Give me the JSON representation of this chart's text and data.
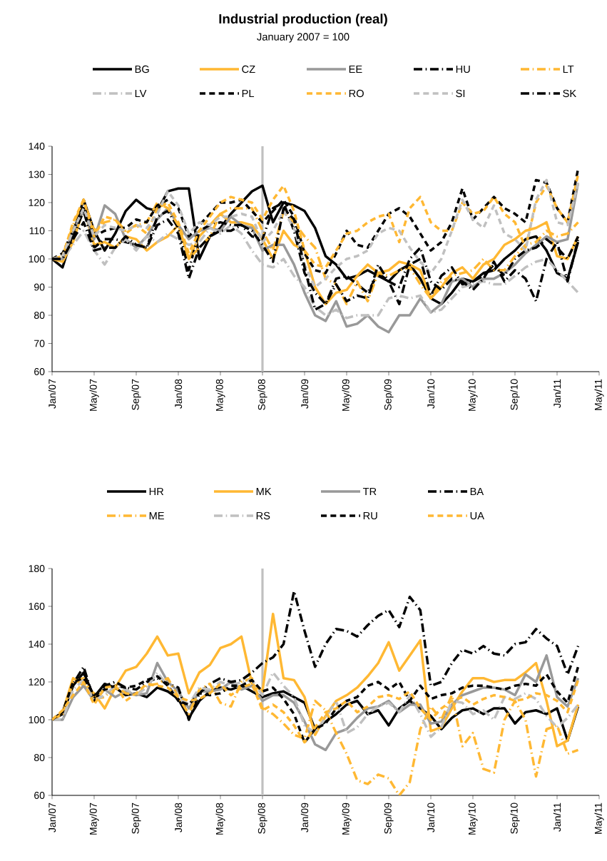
{
  "chart_data": [
    {
      "type": "line",
      "title": "Industrial production (real)",
      "subtitle": "January 2007 = 100",
      "x": [
        "2007-01",
        "2007-02",
        "2007-03",
        "2007-04",
        "2007-05",
        "2007-06",
        "2007-07",
        "2007-08",
        "2007-09",
        "2007-10",
        "2007-11",
        "2007-12",
        "2008-01",
        "2008-02",
        "2008-03",
        "2008-04",
        "2008-05",
        "2008-06",
        "2008-07",
        "2008-08",
        "2008-09",
        "2008-10",
        "2008-11",
        "2008-12",
        "2009-01",
        "2009-02",
        "2009-03",
        "2009-04",
        "2009-05",
        "2009-06",
        "2009-07",
        "2009-08",
        "2009-09",
        "2009-10",
        "2009-11",
        "2009-12",
        "2010-01",
        "2010-02",
        "2010-03",
        "2010-04",
        "2010-05",
        "2010-06",
        "2010-07",
        "2010-08",
        "2010-09",
        "2010-10",
        "2010-11",
        "2010-12",
        "2011-01",
        "2011-02",
        "2011-03"
      ],
      "xlim": [
        "2007-01",
        "2011-05"
      ],
      "xticks": [
        {
          "value": "2007-01",
          "label": "Jan/07"
        },
        {
          "value": "2007-05",
          "label": "May/07"
        },
        {
          "value": "2007-09",
          "label": "Sep/07"
        },
        {
          "value": "2008-01",
          "label": "Jan/08"
        },
        {
          "value": "2008-05",
          "label": "May/08"
        },
        {
          "value": "2008-09",
          "label": "Sep/08"
        },
        {
          "value": "2009-01",
          "label": "Jan/09"
        },
        {
          "value": "2009-05",
          "label": "May/09"
        },
        {
          "value": "2009-09",
          "label": "Sep/09"
        },
        {
          "value": "2010-01",
          "label": "Jan/10"
        },
        {
          "value": "2010-05",
          "label": "May/10"
        },
        {
          "value": "2010-09",
          "label": "Sep/10"
        },
        {
          "value": "2011-01",
          "label": "Jan/11"
        },
        {
          "value": "2011-05",
          "label": "May/11"
        }
      ],
      "ylim": [
        60,
        140
      ],
      "yticks": [
        60,
        70,
        80,
        90,
        100,
        110,
        120,
        130,
        140
      ],
      "legend": "top",
      "ref_lines": [
        {
          "axis": "x",
          "value": "2008-09",
          "color": "#c0c0c0"
        }
      ],
      "series": [
        {
          "name": "BG",
          "color": "#000000",
          "line_style": "solid",
          "values": [
            100,
            97,
            109,
            121,
            110,
            103,
            109,
            117,
            121,
            118,
            117,
            124,
            125,
            125,
            100,
            108,
            111,
            116,
            120,
            124,
            126,
            113,
            120,
            119,
            117,
            111,
            101,
            98,
            93,
            94,
            96,
            94,
            92,
            96,
            98,
            93,
            86,
            84,
            88,
            93,
            92,
            95,
            96,
            100,
            103,
            107,
            108,
            103,
            95,
            93,
            106
          ]
        },
        {
          "name": "CZ",
          "color": "#ffb833",
          "line_style": "solid",
          "values": [
            100,
            99,
            106,
            118,
            105,
            106,
            104,
            108,
            107,
            103,
            106,
            108,
            112,
            100,
            108,
            112,
            116,
            113,
            113,
            112,
            107,
            100,
            110,
            105,
            103,
            90,
            84,
            88,
            89,
            94,
            98,
            95,
            96,
            99,
            98,
            96,
            86,
            90,
            95,
            97,
            93,
            98,
            100,
            105,
            107,
            110,
            111,
            113,
            101,
            100,
            108
          ]
        },
        {
          "name": "EE",
          "color": "#999999",
          "line_style": "solid",
          "values": [
            100,
            100,
            110,
            117,
            107,
            119,
            116,
            107,
            104,
            108,
            114,
            118,
            112,
            107,
            110,
            111,
            110,
            115,
            112,
            111,
            103,
            105,
            105,
            98,
            88,
            80,
            78,
            85,
            76,
            77,
            80,
            76,
            74,
            80,
            80,
            86,
            81,
            84,
            92,
            93,
            90,
            93,
            93,
            95,
            98,
            102,
            105,
            108,
            106,
            107,
            127
          ]
        },
        {
          "name": "HU",
          "color": "#000000",
          "line_style": "dashdot",
          "values": [
            100,
            100,
            108,
            117,
            104,
            107,
            107,
            106,
            105,
            104,
            115,
            117,
            111,
            96,
            110,
            112,
            113,
            112,
            112,
            108,
            107,
            118,
            120,
            110,
            95,
            88,
            84,
            93,
            94,
            91,
            88,
            95,
            92,
            84,
            98,
            100,
            87,
            94,
            97,
            91,
            92,
            94,
            98,
            94,
            100,
            103,
            104,
            107,
            104,
            100,
            108
          ]
        },
        {
          "name": "LT",
          "color": "#ffb833",
          "line_style": "dashdot",
          "values": [
            100,
            101,
            112,
            121,
            110,
            113,
            114,
            110,
            112,
            113,
            120,
            118,
            112,
            100,
            104,
            108,
            116,
            118,
            118,
            118,
            110,
            103,
            117,
            113,
            108,
            104,
            93,
            91,
            84,
            92,
            85,
            95,
            94,
            96,
            97,
            91,
            86,
            92,
            94,
            95,
            96,
            100,
            96,
            96,
            101,
            105,
            106,
            110,
            108,
            109,
            113
          ]
        },
        {
          "name": "LV",
          "color": "#c0c0c0",
          "line_style": "dashdot",
          "values": [
            100,
            100,
            105,
            110,
            103,
            98,
            104,
            107,
            103,
            108,
            106,
            109,
            107,
            105,
            106,
            111,
            109,
            112,
            109,
            103,
            98,
            97,
            100,
            94,
            90,
            83,
            80,
            82,
            79,
            80,
            80,
            80,
            86,
            87,
            86,
            87,
            81,
            82,
            86,
            90,
            91,
            92,
            91,
            91,
            94,
            97,
            99,
            100,
            96,
            92,
            88
          ]
        },
        {
          "name": "PL",
          "color": "#000000",
          "line_style": "dashed",
          "values": [
            100,
            102,
            110,
            119,
            108,
            110,
            111,
            111,
            114,
            113,
            119,
            121,
            118,
            108,
            112,
            116,
            120,
            120,
            121,
            117,
            113,
            117,
            121,
            115,
            102,
            96,
            95,
            102,
            110,
            105,
            104,
            110,
            116,
            118,
            115,
            109,
            103,
            106,
            113,
            125,
            114,
            118,
            122,
            118,
            116,
            113,
            128,
            127,
            118,
            113,
            132
          ]
        },
        {
          "name": "RO",
          "color": "#ffb833",
          "line_style": "dashed",
          "values": [
            100,
            101,
            113,
            121,
            108,
            115,
            114,
            109,
            112,
            109,
            118,
            120,
            113,
            102,
            110,
            115,
            120,
            122,
            121,
            120,
            114,
            121,
            126,
            117,
            103,
            98,
            97,
            103,
            109,
            110,
            113,
            115,
            116,
            106,
            118,
            122,
            113,
            110,
            110,
            120,
            116,
            117,
            122,
            116,
            113,
            104,
            120,
            126,
            118,
            113,
            130
          ]
        },
        {
          "name": "SI",
          "color": "#c0c0c0",
          "line_style": "dashed",
          "values": [
            100,
            101,
            110,
            118,
            108,
            112,
            111,
            110,
            112,
            111,
            116,
            124,
            119,
            109,
            113,
            112,
            115,
            115,
            116,
            115,
            106,
            110,
            117,
            111,
            98,
            90,
            93,
            97,
            100,
            101,
            103,
            109,
            111,
            110,
            104,
            99,
            95,
            100,
            110,
            121,
            114,
            111,
            119,
            109,
            107,
            103,
            121,
            128,
            113,
            112,
            127
          ]
        },
        {
          "name": "SK",
          "color": "#000000",
          "line_style": "dashdot",
          "values": [
            100,
            100,
            107,
            113,
            103,
            104,
            104,
            108,
            105,
            104,
            112,
            114,
            109,
            93,
            104,
            108,
            110,
            110,
            112,
            110,
            105,
            99,
            118,
            114,
            97,
            82,
            84,
            91,
            85,
            87,
            86,
            98,
            92,
            90,
            100,
            104,
            92,
            89,
            93,
            92,
            89,
            93,
            99,
            92,
            96,
            93,
            85,
            100,
            106,
            92,
            107
          ]
        }
      ]
    },
    {
      "type": "line",
      "x": [
        "2007-01",
        "2007-02",
        "2007-03",
        "2007-04",
        "2007-05",
        "2007-06",
        "2007-07",
        "2007-08",
        "2007-09",
        "2007-10",
        "2007-11",
        "2007-12",
        "2008-01",
        "2008-02",
        "2008-03",
        "2008-04",
        "2008-05",
        "2008-06",
        "2008-07",
        "2008-08",
        "2008-09",
        "2008-10",
        "2008-11",
        "2008-12",
        "2009-01",
        "2009-02",
        "2009-03",
        "2009-04",
        "2009-05",
        "2009-06",
        "2009-07",
        "2009-08",
        "2009-09",
        "2009-10",
        "2009-11",
        "2009-12",
        "2010-01",
        "2010-02",
        "2010-03",
        "2010-04",
        "2010-05",
        "2010-06",
        "2010-07",
        "2010-08",
        "2010-09",
        "2010-10",
        "2010-11",
        "2010-12",
        "2011-01",
        "2011-02",
        "2011-03"
      ],
      "xlim": [
        "2007-01",
        "2011-05"
      ],
      "xticks": [
        {
          "value": "2007-01",
          "label": "Jan/07"
        },
        {
          "value": "2007-05",
          "label": "May/07"
        },
        {
          "value": "2007-09",
          "label": "Sep/07"
        },
        {
          "value": "2008-01",
          "label": "Jan/08"
        },
        {
          "value": "2008-05",
          "label": "May/08"
        },
        {
          "value": "2008-09",
          "label": "Sep/08"
        },
        {
          "value": "2009-01",
          "label": "Jan/09"
        },
        {
          "value": "2009-05",
          "label": "May/09"
        },
        {
          "value": "2009-09",
          "label": "Sep/09"
        },
        {
          "value": "2010-01",
          "label": "Jan/10"
        },
        {
          "value": "2010-05",
          "label": "May/10"
        },
        {
          "value": "2010-09",
          "label": "Sep/10"
        },
        {
          "value": "2011-01",
          "label": "Jan/11"
        },
        {
          "value": "2011-05",
          "label": "May/11"
        }
      ],
      "ylim": [
        60,
        180
      ],
      "yticks": [
        60,
        80,
        100,
        120,
        140,
        160,
        180
      ],
      "legend": "top",
      "ref_lines": [
        {
          "axis": "x",
          "value": "2008-09",
          "color": "#c0c0c0"
        }
      ],
      "series": [
        {
          "name": "HR",
          "color": "#000000",
          "line_style": "solid",
          "values": [
            100,
            103,
            118,
            125,
            112,
            119,
            117,
            113,
            114,
            112,
            117,
            115,
            111,
            101,
            110,
            115,
            117,
            116,
            118,
            115,
            112,
            114,
            115,
            112,
            109,
            95,
            99,
            103,
            108,
            110,
            103,
            105,
            97,
            106,
            110,
            106,
            102,
            95,
            101,
            105,
            106,
            103,
            106,
            106,
            98,
            104,
            105,
            103,
            106,
            89,
            107
          ]
        },
        {
          "name": "MK",
          "color": "#ffb833",
          "line_style": "solid",
          "values": [
            100,
            104,
            122,
            118,
            114,
            106,
            117,
            126,
            128,
            135,
            144,
            134,
            135,
            114,
            125,
            129,
            138,
            140,
            144,
            119,
            115,
            156,
            122,
            121,
            112,
            92,
            102,
            110,
            113,
            117,
            123,
            130,
            141,
            126,
            134,
            142,
            94,
            96,
            106,
            115,
            122,
            122,
            120,
            121,
            121,
            125,
            130,
            110,
            86,
            89,
            108
          ]
        },
        {
          "name": "TR",
          "color": "#999999",
          "line_style": "solid",
          "values": [
            100,
            100,
            112,
            118,
            110,
            116,
            112,
            115,
            113,
            114,
            130,
            120,
            115,
            106,
            115,
            115,
            116,
            120,
            116,
            118,
            110,
            113,
            113,
            109,
            99,
            87,
            84,
            93,
            95,
            101,
            106,
            107,
            110,
            104,
            108,
            108,
            98,
            99,
            108,
            113,
            115,
            117,
            117,
            116,
            113,
            124,
            120,
            134,
            112,
            107,
            122
          ]
        },
        {
          "name": "BA",
          "color": "#000000",
          "line_style": "dashdot",
          "values": [
            100,
            104,
            119,
            128,
            110,
            118,
            120,
            117,
            116,
            120,
            122,
            119,
            117,
            100,
            114,
            119,
            122,
            120,
            121,
            125,
            130,
            133,
            140,
            168,
            147,
            128,
            140,
            148,
            147,
            144,
            150,
            155,
            158,
            149,
            165,
            158,
            118,
            120,
            130,
            137,
            135,
            139,
            135,
            134,
            140,
            141,
            148,
            143,
            139,
            124,
            139
          ]
        },
        {
          "name": "ME",
          "color": "#ffb833",
          "line_style": "dashdot",
          "values": [
            100,
            103,
            120,
            122,
            111,
            112,
            118,
            114,
            113,
            118,
            119,
            122,
            112,
            103,
            116,
            119,
            109,
            107,
            120,
            122,
            106,
            103,
            98,
            92,
            90,
            110,
            105,
            93,
            82,
            68,
            66,
            71,
            69,
            60,
            67,
            95,
            107,
            100,
            113,
            86,
            93,
            74,
            72,
            100,
            110,
            100,
            70,
            95,
            97,
            82,
            84
          ]
        },
        {
          "name": "RS",
          "color": "#c0c0c0",
          "line_style": "dashdot",
          "values": [
            100,
            100,
            116,
            121,
            110,
            113,
            118,
            116,
            113,
            117,
            125,
            118,
            112,
            108,
            117,
            116,
            120,
            118,
            120,
            121,
            113,
            125,
            118,
            112,
            97,
            93,
            101,
            110,
            93,
            96,
            103,
            107,
            109,
            104,
            113,
            103,
            91,
            96,
            110,
            109,
            103,
            105,
            100,
            112,
            111,
            114,
            111,
            102,
            96,
            101,
            108
          ]
        },
        {
          "name": "RU",
          "color": "#000000",
          "line_style": "dashed",
          "values": [
            100,
            104,
            120,
            122,
            113,
            116,
            118,
            117,
            118,
            121,
            123,
            118,
            110,
            108,
            114,
            113,
            114,
            118,
            118,
            121,
            115,
            117,
            111,
            103,
            88,
            95,
            98,
            106,
            110,
            112,
            118,
            120,
            116,
            120,
            110,
            118,
            111,
            113,
            114,
            117,
            118,
            118,
            117,
            116,
            118,
            119,
            118,
            124,
            115,
            109,
            128
          ]
        },
        {
          "name": "UA",
          "color": "#ffb833",
          "line_style": "dashed",
          "values": [
            100,
            105,
            113,
            120,
            108,
            117,
            118,
            110,
            114,
            119,
            118,
            117,
            112,
            110,
            111,
            114,
            119,
            113,
            117,
            119,
            105,
            108,
            104,
            97,
            88,
            96,
            104,
            106,
            110,
            104,
            107,
            112,
            113,
            111,
            115,
            106,
            100,
            106,
            110,
            112,
            108,
            111,
            113,
            112,
            110,
            111,
            114,
            113,
            110,
            104,
            121
          ]
        }
      ]
    }
  ]
}
